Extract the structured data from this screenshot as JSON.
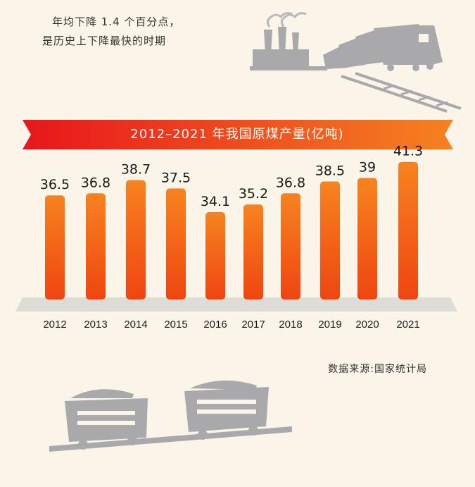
{
  "intro": {
    "line1": "年均下降 1.4 个百分点，",
    "line2": "是历史上下降最快的时期"
  },
  "colors": {
    "bar_top": "#f7831f",
    "bar_bottom": "#ef4511",
    "banner_left": "#e8161c",
    "banner_right": "#f58220",
    "base": "#dedcd7",
    "illustration": "#a9a9ab"
  },
  "chart_data": {
    "type": "bar",
    "title": "2012–2021 年我国原煤产量(亿吨)",
    "categories": [
      "2012",
      "2013",
      "2014",
      "2015",
      "2016",
      "2017",
      "2018",
      "2019",
      "2020",
      "2021"
    ],
    "values": [
      36.5,
      36.8,
      38.7,
      37.5,
      34.1,
      35.2,
      36.8,
      38.5,
      39,
      41.3
    ],
    "value_labels": [
      "36.5",
      "36.8",
      "38.7",
      "37.5",
      "34.1",
      "35.2",
      "36.8",
      "38.5",
      "39",
      "41.3"
    ],
    "xlabel": "",
    "ylabel": "",
    "grid": false,
    "legend": "none"
  },
  "source": "数据来源:国家统计局"
}
